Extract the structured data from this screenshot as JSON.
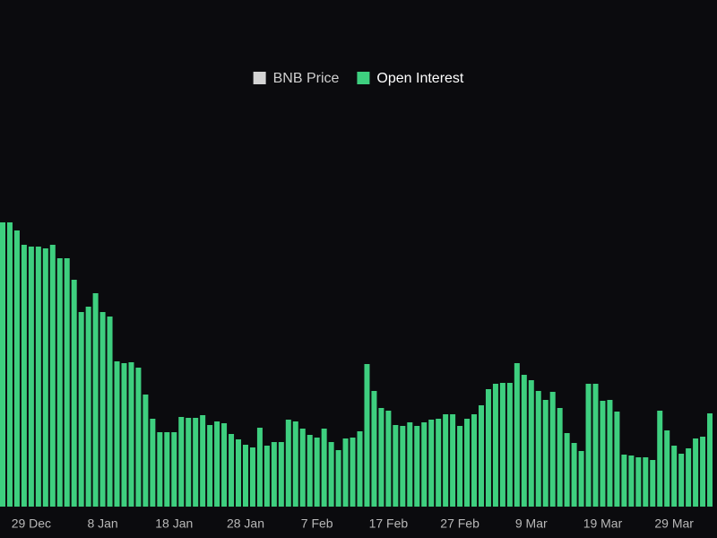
{
  "chart_data": {
    "type": "bar",
    "categories": [
      null,
      null,
      null,
      null,
      "29 Dec",
      null,
      null,
      null,
      null,
      null,
      null,
      null,
      null,
      null,
      "8 Jan",
      null,
      null,
      null,
      null,
      null,
      null,
      null,
      null,
      null,
      "18 Jan",
      null,
      null,
      null,
      null,
      null,
      null,
      null,
      null,
      null,
      "28 Jan",
      null,
      null,
      null,
      null,
      null,
      null,
      null,
      null,
      null,
      "7 Feb",
      null,
      null,
      null,
      null,
      null,
      null,
      null,
      null,
      null,
      "17 Feb",
      null,
      null,
      null,
      null,
      null,
      null,
      null,
      null,
      null,
      "27 Feb",
      null,
      null,
      null,
      null,
      null,
      null,
      null,
      null,
      null,
      "9 Mar",
      null,
      null,
      null,
      null,
      null,
      null,
      null,
      null,
      null,
      "19 Mar",
      null,
      null,
      null,
      null,
      null,
      null,
      null,
      null,
      null,
      "29 Mar",
      null,
      null,
      null,
      null,
      null
    ],
    "series": [
      {
        "name": "BNB Price",
        "color": "#d4d4d4"
      },
      {
        "name": "Open Interest",
        "color": "#3ecf7f",
        "values": [
          317,
          317,
          308,
          292,
          290,
          290,
          288,
          292,
          277,
          277,
          253,
          217,
          223,
          238,
          217,
          212,
          162,
          160,
          161,
          155,
          125,
          98,
          83,
          83,
          83,
          100,
          99,
          99,
          102,
          91,
          95,
          93,
          81,
          75,
          69,
          66,
          88,
          68,
          72,
          72,
          97,
          95,
          87,
          80,
          77,
          87,
          72,
          63,
          76,
          77,
          84,
          159,
          129,
          110,
          107,
          91,
          90,
          94,
          90,
          94,
          97,
          98,
          103,
          103,
          90,
          98,
          103,
          113,
          131,
          137,
          138,
          138,
          160,
          147,
          141,
          129,
          119,
          128,
          110,
          82,
          71,
          62,
          137,
          137,
          118,
          119,
          106,
          58,
          57,
          55,
          55,
          52,
          107,
          85,
          68,
          59,
          65,
          76,
          78,
          104
        ]
      }
    ],
    "ylim": [
      0,
      320
    ],
    "legend": "top"
  }
}
